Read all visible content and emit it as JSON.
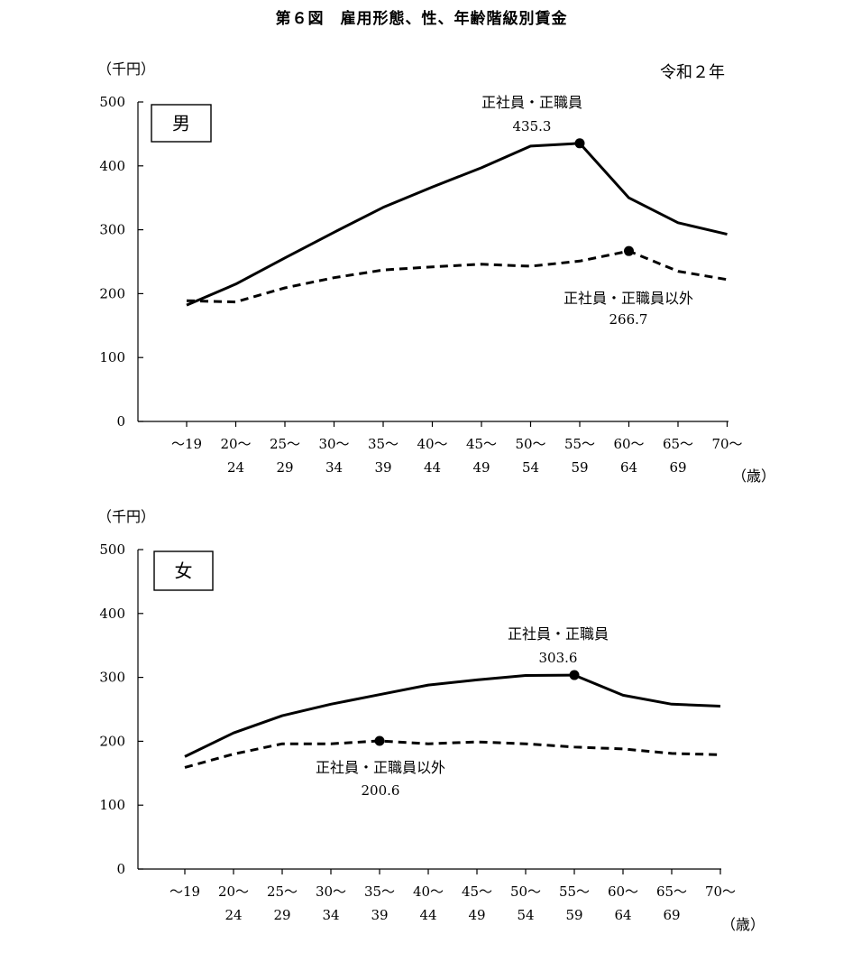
{
  "title": "第６図　雇用形態、性、年齢階級別賃金",
  "year_label": "令和２年",
  "chart_data": [
    {
      "type": "line",
      "panel_label": "男",
      "y_unit": "（千円）",
      "x_unit": "（歳）",
      "ylim": [
        0,
        500
      ],
      "yticks": [
        "0",
        "100",
        "200",
        "300",
        "400",
        "500"
      ],
      "categories": [
        [
          "～19",
          ""
        ],
        [
          "20～",
          "24"
        ],
        [
          "25～",
          "29"
        ],
        [
          "30～",
          "34"
        ],
        [
          "35～",
          "39"
        ],
        [
          "40～",
          "44"
        ],
        [
          "45～",
          "49"
        ],
        [
          "50～",
          "54"
        ],
        [
          "55～",
          "59"
        ],
        [
          "60～",
          "64"
        ],
        [
          "65～",
          "69"
        ],
        [
          "70～",
          ""
        ]
      ],
      "series": [
        {
          "name": "正社員・正職員",
          "style": "solid",
          "values": [
            182,
            215,
            256,
            296,
            335,
            367,
            397,
            431,
            435.3,
            350,
            311,
            293
          ],
          "peak_index": 8,
          "peak_label": "435.3"
        },
        {
          "name": "正社員・正職員以外",
          "style": "dashed",
          "values": [
            189,
            187,
            209,
            225,
            237,
            242,
            246,
            243,
            251,
            266.7,
            235,
            222
          ],
          "peak_index": 9,
          "peak_label": "266.7"
        }
      ]
    },
    {
      "type": "line",
      "panel_label": "女",
      "y_unit": "（千円）",
      "x_unit": "（歳）",
      "ylim": [
        0,
        500
      ],
      "yticks": [
        "0",
        "100",
        "200",
        "300",
        "400",
        "500"
      ],
      "categories": [
        [
          "～19",
          ""
        ],
        [
          "20～",
          "24"
        ],
        [
          "25～",
          "29"
        ],
        [
          "30～",
          "34"
        ],
        [
          "35～",
          "39"
        ],
        [
          "40～",
          "44"
        ],
        [
          "45～",
          "49"
        ],
        [
          "50～",
          "54"
        ],
        [
          "55～",
          "59"
        ],
        [
          "60～",
          "64"
        ],
        [
          "65～",
          "69"
        ],
        [
          "70～",
          ""
        ]
      ],
      "series": [
        {
          "name": "正社員・正職員",
          "style": "solid",
          "values": [
            176,
            213,
            240,
            258,
            273,
            288,
            296,
            303,
            303.6,
            272,
            258,
            255
          ],
          "peak_index": 8,
          "peak_label": "303.6"
        },
        {
          "name": "正社員・正職員以外",
          "style": "dashed",
          "values": [
            159,
            180,
            196,
            196,
            200.6,
            196,
            199,
            196,
            191,
            188,
            181,
            179
          ],
          "peak_index": 4,
          "peak_label": "200.6"
        }
      ]
    }
  ]
}
